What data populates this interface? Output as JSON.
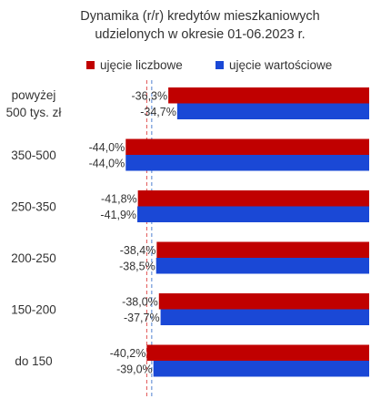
{
  "title_lines": [
    "Dynamika (r/r) kredytów mieszkaniowych",
    "udzielonych w okresie 01-06.2023 r."
  ],
  "colors": {
    "series1": "#c00000",
    "series2": "#1a48d6",
    "text": "#333333",
    "ref1": "#e05050",
    "ref2": "#5080d0"
  },
  "chart_data": {
    "type": "bar",
    "orientation": "horizontal",
    "title": "Dynamika (r/r) kredytów mieszkaniowych udzielonych w okresie 01-06.2023 r.",
    "categories": [
      [
        "powyżej",
        "500 tys. zł"
      ],
      [
        "350-500"
      ],
      [
        "250-350"
      ],
      [
        "200-250"
      ],
      [
        "150-200"
      ],
      [
        "do 150"
      ]
    ],
    "series": [
      {
        "name": "ujęcie liczbowe",
        "values": [
          -36.3,
          -44.0,
          -41.8,
          -38.4,
          -38.0,
          -40.2
        ],
        "labels": [
          "-36,3%",
          "-44,0%",
          "-41,8%",
          "-38,4%",
          "-38,0%",
          "-40,2%"
        ]
      },
      {
        "name": "ujęcie wartościowe",
        "values": [
          -34.7,
          -44.0,
          -41.9,
          -38.5,
          -37.7,
          -39.0
        ],
        "labels": [
          "-34,7%",
          "-44,0%",
          "-41,9%",
          "-38,5%",
          "-37,7%",
          "-39,0%"
        ]
      }
    ],
    "reference_lines": [
      -40.2,
      -39.3
    ],
    "xlim": [
      -47,
      0
    ],
    "legend": "top",
    "grid": false
  }
}
